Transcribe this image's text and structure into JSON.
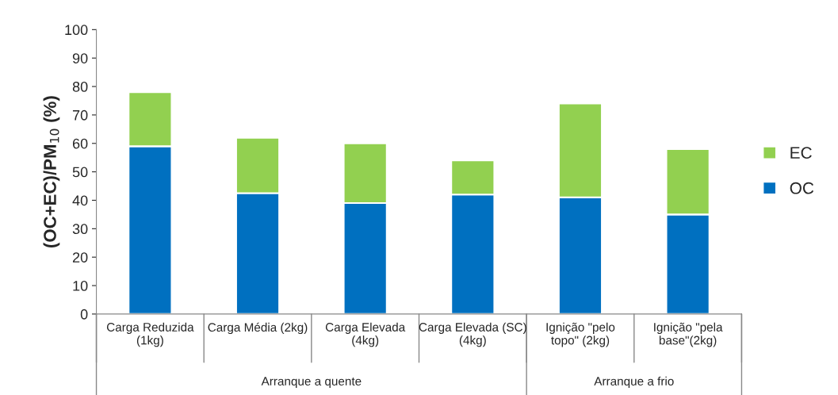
{
  "chart_data": {
    "type": "bar",
    "stacked": true,
    "ylabel": "(OC+EC)/PM$_{10}$ (%)",
    "categories": [
      "Carga Reduzida\n(1kg)",
      "Carga Média (2kg)",
      "Carga Elevada\n(4kg)",
      "Carga Elevada (SC)\n(4kg)",
      "Ignição \"pelo\ntopo\" (2kg)",
      "Ignição \"pela\nbase\"(2kg)"
    ],
    "series": [
      {
        "name": "OC",
        "color": "#0070c0",
        "values": [
          59,
          42.5,
          39,
          42,
          41,
          35
        ]
      },
      {
        "name": "EC",
        "color": "#92d050",
        "values": [
          19,
          19.5,
          21,
          12,
          33,
          23
        ]
      }
    ],
    "ylim": [
      0,
      100
    ],
    "yticks": [
      0,
      10,
      20,
      30,
      40,
      50,
      60,
      70,
      80,
      90,
      100
    ],
    "grid": false,
    "legend": "right",
    "annotations": [
      "Arranque a quente",
      "Arranque a frio"
    ]
  }
}
